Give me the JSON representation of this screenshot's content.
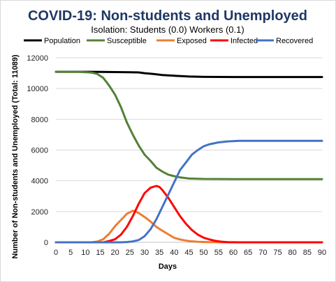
{
  "chart_data": {
    "type": "line",
    "title": "COVID-19: Non-students and Unemployed",
    "subtitle": "Isolation: Students (0.0) Workers (0.1)",
    "xlabel": "Days",
    "ylabel": "Number of Non-students and Unemployed (Total: 11089)",
    "xlim": [
      0,
      90
    ],
    "ylim": [
      0,
      12000
    ],
    "x_ticks": [
      0,
      5,
      10,
      15,
      20,
      25,
      30,
      35,
      40,
      45,
      50,
      55,
      60,
      65,
      70,
      75,
      80,
      85,
      90
    ],
    "y_ticks": [
      0,
      2000,
      4000,
      6000,
      8000,
      10000,
      12000
    ],
    "grid": "horizontal",
    "legend_position": "top",
    "series": [
      {
        "name": "Population",
        "color": "#000000",
        "points": [
          [
            0,
            11089
          ],
          [
            10,
            11089
          ],
          [
            15,
            11085
          ],
          [
            20,
            11070
          ],
          [
            25,
            11060
          ],
          [
            28,
            11050
          ],
          [
            30,
            11000
          ],
          [
            33,
            10950
          ],
          [
            36,
            10880
          ],
          [
            40,
            10830
          ],
          [
            45,
            10780
          ],
          [
            50,
            10760
          ],
          [
            60,
            10750
          ],
          [
            70,
            10750
          ],
          [
            80,
            10750
          ],
          [
            90,
            10750
          ]
        ]
      },
      {
        "name": "Susceptible",
        "color": "#538135",
        "points": [
          [
            0,
            11089
          ],
          [
            8,
            11085
          ],
          [
            12,
            11040
          ],
          [
            14,
            10950
          ],
          [
            16,
            10700
          ],
          [
            18,
            10200
          ],
          [
            20,
            9600
          ],
          [
            22,
            8800
          ],
          [
            24,
            7800
          ],
          [
            26,
            7000
          ],
          [
            28,
            6300
          ],
          [
            30,
            5700
          ],
          [
            32,
            5300
          ],
          [
            34,
            4850
          ],
          [
            36,
            4600
          ],
          [
            38,
            4400
          ],
          [
            40,
            4300
          ],
          [
            42,
            4220
          ],
          [
            45,
            4150
          ],
          [
            50,
            4120
          ],
          [
            60,
            4110
          ],
          [
            70,
            4110
          ],
          [
            80,
            4110
          ],
          [
            90,
            4110
          ]
        ]
      },
      {
        "name": "Exposed",
        "color": "#ed7d31",
        "points": [
          [
            0,
            0
          ],
          [
            12,
            0
          ],
          [
            14,
            50
          ],
          [
            16,
            200
          ],
          [
            18,
            550
          ],
          [
            20,
            1050
          ],
          [
            22,
            1450
          ],
          [
            24,
            1850
          ],
          [
            26,
            2050
          ],
          [
            27,
            2000
          ],
          [
            28,
            1900
          ],
          [
            30,
            1650
          ],
          [
            32,
            1350
          ],
          [
            34,
            1000
          ],
          [
            36,
            750
          ],
          [
            38,
            520
          ],
          [
            40,
            300
          ],
          [
            42,
            180
          ],
          [
            45,
            80
          ],
          [
            48,
            30
          ],
          [
            52,
            10
          ],
          [
            60,
            0
          ],
          [
            90,
            0
          ]
        ]
      },
      {
        "name": "Infected",
        "color": "#ff0000",
        "points": [
          [
            0,
            0
          ],
          [
            16,
            0
          ],
          [
            18,
            80
          ],
          [
            20,
            200
          ],
          [
            22,
            500
          ],
          [
            24,
            1000
          ],
          [
            26,
            1700
          ],
          [
            28,
            2500
          ],
          [
            30,
            3200
          ],
          [
            32,
            3550
          ],
          [
            34,
            3670
          ],
          [
            35,
            3600
          ],
          [
            36,
            3400
          ],
          [
            38,
            2900
          ],
          [
            40,
            2300
          ],
          [
            42,
            1700
          ],
          [
            44,
            1200
          ],
          [
            46,
            800
          ],
          [
            48,
            500
          ],
          [
            50,
            300
          ],
          [
            52,
            180
          ],
          [
            54,
            90
          ],
          [
            56,
            40
          ],
          [
            58,
            15
          ],
          [
            62,
            0
          ],
          [
            90,
            0
          ]
        ]
      },
      {
        "name": "Recovered",
        "color": "#4472c4",
        "points": [
          [
            0,
            0
          ],
          [
            22,
            0
          ],
          [
            24,
            20
          ],
          [
            26,
            60
          ],
          [
            28,
            150
          ],
          [
            30,
            400
          ],
          [
            32,
            850
          ],
          [
            34,
            1500
          ],
          [
            36,
            2300
          ],
          [
            38,
            3100
          ],
          [
            40,
            3900
          ],
          [
            42,
            4700
          ],
          [
            44,
            5200
          ],
          [
            46,
            5700
          ],
          [
            48,
            6000
          ],
          [
            50,
            6250
          ],
          [
            52,
            6380
          ],
          [
            55,
            6500
          ],
          [
            58,
            6560
          ],
          [
            62,
            6600
          ],
          [
            70,
            6600
          ],
          [
            80,
            6600
          ],
          [
            90,
            6600
          ]
        ]
      }
    ]
  }
}
